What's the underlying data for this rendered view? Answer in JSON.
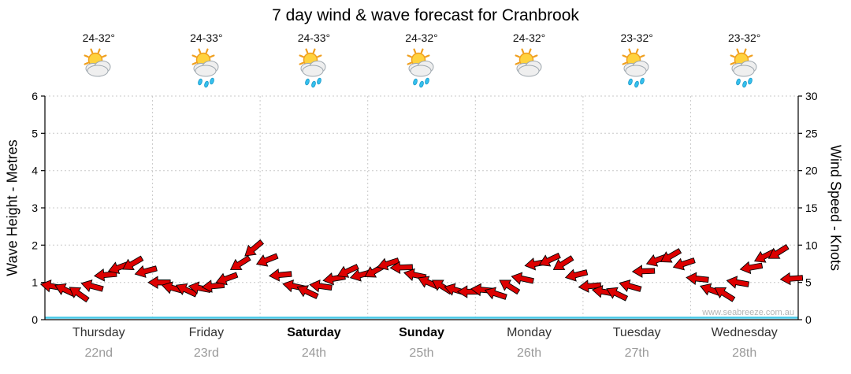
{
  "title": "7 day wind & wave forecast for Cranbrook",
  "watermark": "www.seabreeze.com.au",
  "left_axis": {
    "label": "Wave Height - Metres",
    "ticks": [
      0,
      1,
      2,
      3,
      4,
      5,
      6
    ]
  },
  "right_axis": {
    "label": "Wind Speed - Knots",
    "ticks": [
      0,
      5,
      10,
      15,
      20,
      25,
      30
    ]
  },
  "days": [
    {
      "name": "Thursday",
      "date": "22nd",
      "temp": "24-32°",
      "bold": false,
      "icon": "partly-cloudy"
    },
    {
      "name": "Friday",
      "date": "23rd",
      "temp": "24-33°",
      "bold": false,
      "icon": "showers"
    },
    {
      "name": "Saturday",
      "date": "24th",
      "temp": "24-33°",
      "bold": true,
      "icon": "showers"
    },
    {
      "name": "Sunday",
      "date": "25th",
      "temp": "24-32°",
      "bold": true,
      "icon": "showers"
    },
    {
      "name": "Monday",
      "date": "26th",
      "temp": "24-32°",
      "bold": false,
      "icon": "partly-cloudy"
    },
    {
      "name": "Tuesday",
      "date": "27th",
      "temp": "23-32°",
      "bold": false,
      "icon": "showers"
    },
    {
      "name": "Wednesday",
      "date": "28th",
      "temp": "23-32°",
      "bold": false,
      "icon": "showers"
    }
  ],
  "chart_data": {
    "type": "scatter",
    "title": "7 day wind & wave forecast for Cranbrook",
    "xlabel": "",
    "ylabel_left": "Wave Height - Metres",
    "ylabel_right": "Wind Speed - Knots",
    "ylim_left": [
      0,
      6
    ],
    "ylim_right": [
      0,
      30
    ],
    "grid": true,
    "x_categories": [
      "Thursday 22nd",
      "Friday 23rd",
      "Saturday 24th",
      "Sunday 25th",
      "Monday 26th",
      "Tuesday 27th",
      "Wednesday 28th"
    ],
    "points_per_day": 8,
    "series_note": "red wind-direction arrows plotted at wave height (metres, left axis)",
    "wave_heights_m": [
      0.9,
      0.8,
      0.7,
      0.9,
      1.2,
      1.4,
      1.5,
      1.3,
      1.0,
      0.85,
      0.8,
      0.85,
      0.9,
      1.1,
      1.5,
      1.9,
      1.6,
      1.2,
      0.9,
      0.75,
      0.9,
      1.1,
      1.3,
      1.2,
      1.3,
      1.5,
      1.4,
      1.2,
      1.0,
      0.9,
      0.8,
      0.75,
      0.8,
      0.7,
      0.9,
      1.1,
      1.5,
      1.6,
      1.5,
      1.2,
      0.9,
      0.75,
      0.7,
      0.9,
      1.3,
      1.6,
      1.7,
      1.5,
      1.1,
      0.8,
      0.7,
      1.0,
      1.4,
      1.7,
      1.8,
      1.1
    ],
    "directions_deg": [
      190,
      205,
      215,
      195,
      175,
      160,
      150,
      165,
      180,
      195,
      205,
      190,
      175,
      160,
      148,
      140,
      158,
      175,
      192,
      205,
      188,
      170,
      155,
      165,
      150,
      162,
      178,
      192,
      204,
      212,
      196,
      180,
      185,
      198,
      212,
      192,
      170,
      155,
      148,
      166,
      175,
      190,
      206,
      196,
      178,
      160,
      150,
      162,
      186,
      200,
      212,
      190,
      170,
      154,
      148,
      176
    ],
    "colors": {
      "arrow": "#DD0000",
      "baseline": "#45C8E8",
      "grid": "#C8C8C8",
      "axis": "#000000"
    }
  }
}
